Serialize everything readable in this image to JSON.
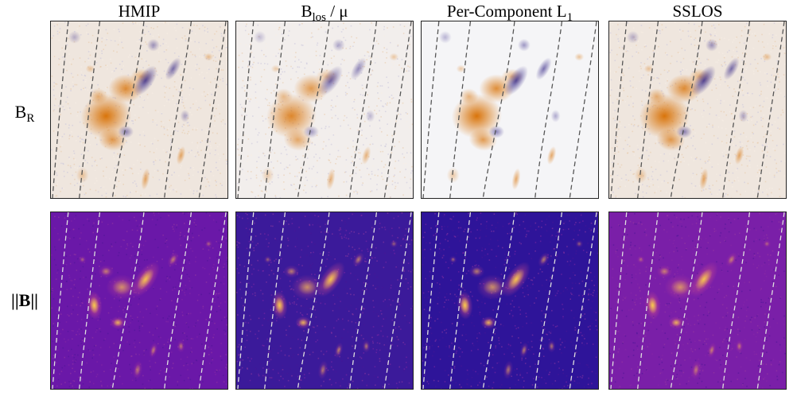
{
  "columns": [
    {
      "main": "HMIP",
      "sub": "",
      "tail": ""
    },
    {
      "main": "B",
      "sub": "los",
      "tail": " / μ"
    },
    {
      "main": "Per-Component L",
      "sub": "1",
      "tail": ""
    },
    {
      "main": "SSLOS",
      "sub": "",
      "tail": ""
    }
  ],
  "rows": [
    {
      "main": "B",
      "sub": "R",
      "colormap": "diverging blue-white-orange"
    },
    {
      "main": "||B||",
      "colormap": "plasma"
    }
  ],
  "colors": {
    "orange": "#d9740a",
    "blue": "#3a2c8a",
    "plasma_low": "#5c0fa0",
    "plasma_high": "#f9d14a",
    "contour_dark": "#555555",
    "contour_light": "#e0e0e0"
  }
}
